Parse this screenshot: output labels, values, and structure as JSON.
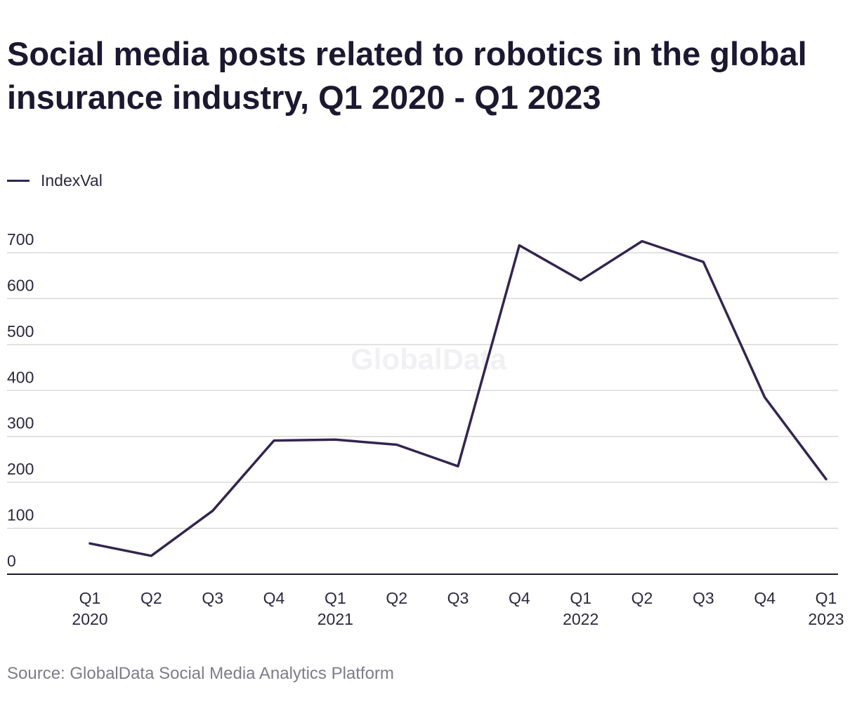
{
  "title": "Social media posts related to robotics in the global insurance industry, Q1 2020 - Q1 2023",
  "legend": {
    "label": "IndexVal"
  },
  "source": "Source: GlobalData Social Media Analytics Platform",
  "watermark": "GlobalData",
  "colors": {
    "line": "#33254f",
    "grid": "#d9d9d9",
    "axis": "#1b1830",
    "text": "#2b2840"
  },
  "chart_data": {
    "type": "line",
    "title": "Social media posts related to robotics in the global insurance industry, Q1 2020 - Q1 2023",
    "xlabel": "",
    "ylabel": "",
    "categories": [
      "Q1 2020",
      "Q2 2020",
      "Q3 2020",
      "Q4 2020",
      "Q1 2021",
      "Q2 2021",
      "Q3 2021",
      "Q4 2021",
      "Q1 2022",
      "Q2 2022",
      "Q3 2022",
      "Q4 2022",
      "Q1 2023"
    ],
    "tick_labels": [
      [
        "Q1",
        "2020"
      ],
      [
        "Q2"
      ],
      [
        "Q3"
      ],
      [
        "Q4"
      ],
      [
        "Q1",
        "2021"
      ],
      [
        "Q2"
      ],
      [
        "Q3"
      ],
      [
        "Q4"
      ],
      [
        "Q1",
        "2022"
      ],
      [
        "Q2"
      ],
      [
        "Q3"
      ],
      [
        "Q4"
      ],
      [
        "Q1",
        "2023"
      ]
    ],
    "series": [
      {
        "name": "IndexVal",
        "values": [
          67,
          40,
          138,
          291,
          293,
          282,
          235,
          716,
          640,
          725,
          680,
          385,
          207
        ]
      }
    ],
    "yticks": [
      0,
      100,
      200,
      300,
      400,
      500,
      600,
      700
    ],
    "ylim": [
      0,
      700
    ],
    "grid": true,
    "legend_position": "top-left"
  }
}
